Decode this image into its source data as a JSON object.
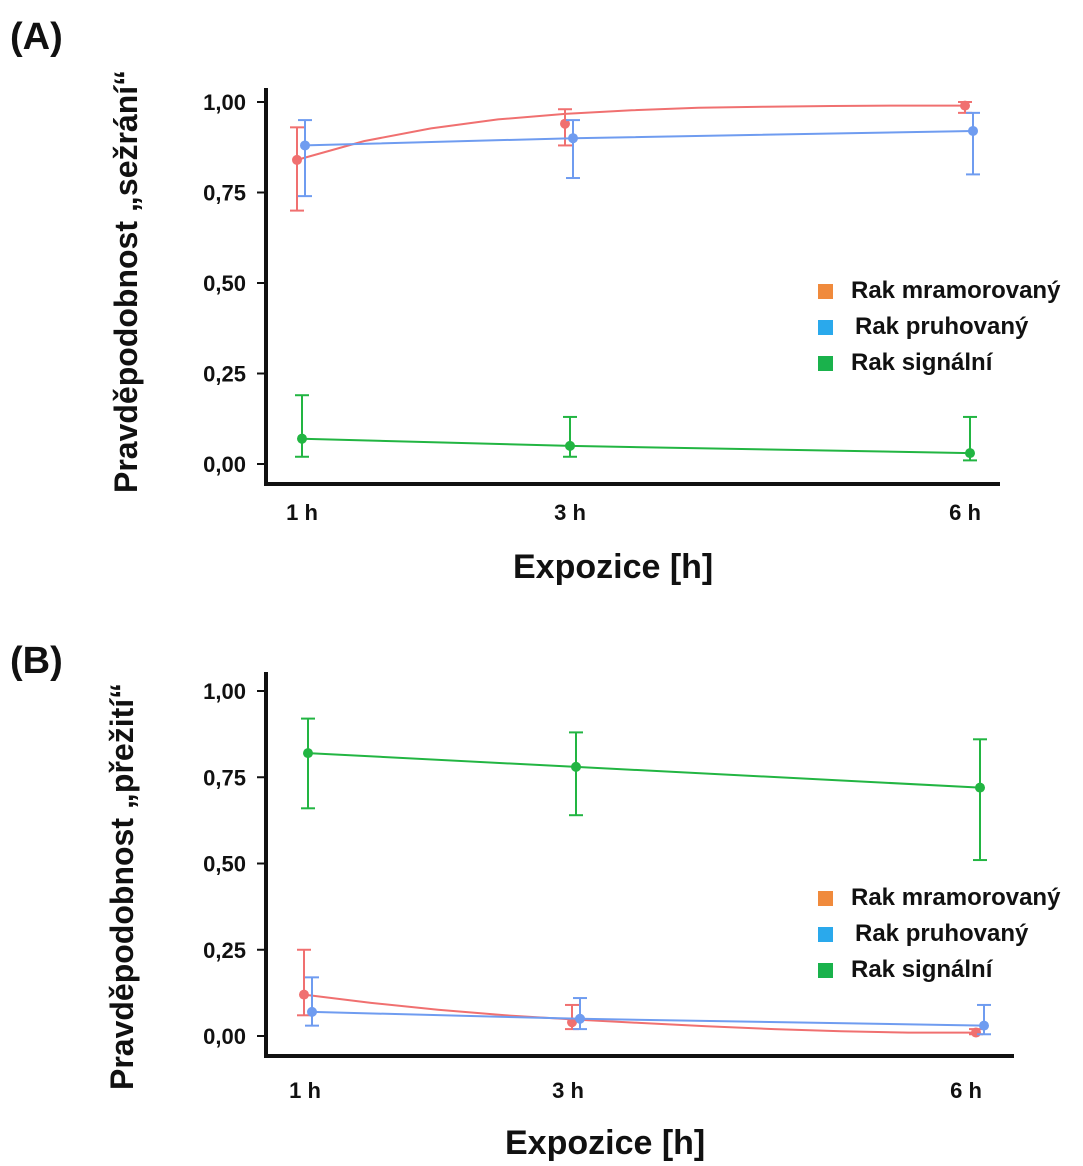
{
  "colors": {
    "marbled": "#f07070",
    "striped": "#6f9cf0",
    "signal": "#22b542",
    "legend_marbled": "#f08a3c",
    "legend_striped": "#2aa9ec",
    "legend_signal": "#1ab24c",
    "axis": "#111111"
  },
  "chart_data": [
    {
      "type": "line",
      "panel_label": "(A)",
      "xlabel": "Expozice [h]",
      "ylabel": "Pravděpodobnost „sežrání“",
      "categories": [
        "1 h",
        "3 h",
        "6 h"
      ],
      "x": [
        1,
        3,
        6
      ],
      "ylim": [
        0,
        1
      ],
      "yticks": [
        "1,00",
        "0,75",
        "0,50",
        "0,25",
        "0,00"
      ],
      "ytick_values": [
        1.0,
        0.75,
        0.5,
        0.25,
        0.0
      ],
      "legend_position": "center-right",
      "series": [
        {
          "name": "Rak mramorovaný",
          "color_key": "marbled",
          "legend_color_key": "legend_marbled",
          "values": [
            0.84,
            0.94,
            0.99
          ],
          "lower": [
            0.7,
            0.88,
            0.97
          ],
          "upper": [
            0.93,
            0.98,
            1.0
          ],
          "curve": [
            0.84,
            0.892,
            0.927,
            0.952,
            0.967,
            0.977,
            0.984,
            0.987,
            0.989,
            0.99,
            0.99
          ]
        },
        {
          "name": "Rak pruhovaný",
          "color_key": "striped",
          "legend_color_key": "legend_striped",
          "values": [
            0.88,
            0.9,
            0.92
          ],
          "lower": [
            0.74,
            0.79,
            0.8
          ],
          "upper": [
            0.95,
            0.95,
            0.97
          ]
        },
        {
          "name": "Rak signální",
          "color_key": "signal",
          "legend_color_key": "legend_signal",
          "values": [
            0.07,
            0.05,
            0.03
          ],
          "lower": [
            0.02,
            0.02,
            0.01
          ],
          "upper": [
            0.19,
            0.13,
            0.13
          ]
        }
      ]
    },
    {
      "type": "line",
      "panel_label": "(B)",
      "xlabel": "Expozice [h]",
      "ylabel": "Pravděpodobnost „přežití“",
      "categories": [
        "1 h",
        "3 h",
        "6 h"
      ],
      "x": [
        1,
        3,
        6
      ],
      "ylim": [
        0,
        1
      ],
      "yticks": [
        "1,00",
        "0,75",
        "0,50",
        "0,25",
        "0,00"
      ],
      "ytick_values": [
        1.0,
        0.75,
        0.5,
        0.25,
        0.0
      ],
      "legend_position": "bottom-right",
      "series": [
        {
          "name": "Rak mramorovaný",
          "color_key": "marbled",
          "legend_color_key": "legend_marbled",
          "values": [
            0.12,
            0.04,
            0.01
          ],
          "lower": [
            0.06,
            0.02,
            0.005
          ],
          "upper": [
            0.25,
            0.09,
            0.02
          ],
          "curve": [
            0.12,
            0.096,
            0.076,
            0.06,
            0.048,
            0.038,
            0.028,
            0.02,
            0.014,
            0.01,
            0.01
          ]
        },
        {
          "name": "Rak pruhovaný",
          "color_key": "striped",
          "legend_color_key": "legend_striped",
          "values": [
            0.07,
            0.05,
            0.03
          ],
          "lower": [
            0.03,
            0.02,
            0.005
          ],
          "upper": [
            0.17,
            0.11,
            0.09
          ]
        },
        {
          "name": "Rak signální",
          "color_key": "signal",
          "legend_color_key": "legend_signal",
          "values": [
            0.82,
            0.78,
            0.72
          ],
          "lower": [
            0.66,
            0.64,
            0.51
          ],
          "upper": [
            0.92,
            0.88,
            0.86
          ]
        }
      ]
    }
  ]
}
